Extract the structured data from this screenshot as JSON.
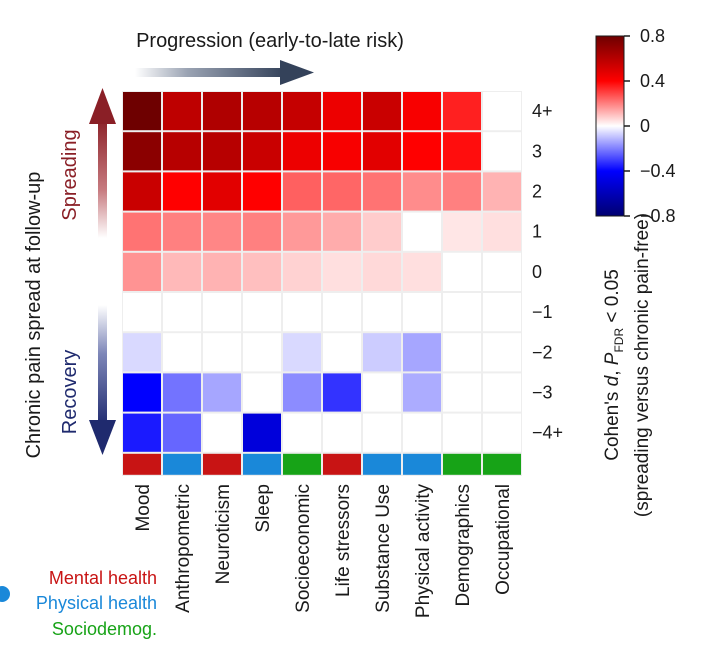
{
  "chart_data": {
    "type": "heatmap",
    "progression_label": "Progression (early-to-late risk)",
    "y_axis_title": "Chronic pain spread at follow-up",
    "spreading_label": "Spreading",
    "recovery_label": "Recovery",
    "columns": [
      "Mood",
      "Anthropometric",
      "Neuroticism",
      "Sleep",
      "Socioeconomic",
      "Life stressors",
      "Substance Use",
      "Physical activity",
      "Demographics",
      "Occupational"
    ],
    "rows": [
      "4+",
      "3",
      "2",
      "1",
      "0",
      "−1",
      "−2",
      "−3",
      "−4+"
    ],
    "values": [
      [
        0.8,
        0.58,
        0.62,
        0.6,
        0.56,
        0.45,
        0.55,
        0.42,
        0.35,
        0.0
      ],
      [
        0.72,
        0.6,
        0.6,
        0.55,
        0.45,
        0.42,
        0.48,
        0.4,
        0.38,
        0.0
      ],
      [
        0.55,
        0.4,
        0.48,
        0.4,
        0.25,
        0.24,
        0.22,
        0.18,
        0.2,
        0.12
      ],
      [
        0.22,
        0.2,
        0.19,
        0.2,
        0.16,
        0.13,
        0.08,
        0.0,
        0.04,
        0.05
      ],
      [
        0.17,
        0.11,
        0.12,
        0.1,
        0.07,
        0.05,
        0.06,
        0.05,
        0.0,
        0.0
      ],
      [
        0.0,
        0.0,
        0.0,
        0.0,
        0.0,
        0.0,
        0.0,
        0.0,
        0.0,
        0.0
      ],
      [
        -0.06,
        0.0,
        0.0,
        0.0,
        -0.06,
        0.0,
        -0.08,
        -0.14,
        0.0,
        0.0
      ],
      [
        -0.4,
        -0.22,
        -0.14,
        0.0,
        -0.18,
        -0.32,
        0.0,
        -0.13,
        0.0,
        0.0
      ],
      [
        -0.36,
        -0.24,
        0.0,
        -0.5,
        0.0,
        0.0,
        0.0,
        0.0,
        0.0,
        0.0
      ]
    ],
    "column_category": [
      "mental",
      "physical",
      "mental",
      "physical",
      "socio",
      "mental",
      "physical",
      "physical",
      "socio",
      "socio"
    ],
    "category_colors": {
      "mental": "#c81414",
      "physical": "#1a88d9",
      "socio": "#17a317"
    },
    "legend": {
      "mental": "Mental health",
      "physical": "Physical health",
      "socio": "Sociodemog."
    },
    "colorbar": {
      "ticks": [
        "0.8",
        "0.4",
        "0",
        "−0.4",
        "−0.8"
      ],
      "tick_values": [
        0.8,
        0.4,
        0,
        -0.4,
        -0.8
      ],
      "range": [
        -0.8,
        0.8
      ],
      "label_line1_a": "Cohen's ",
      "label_line1_d": "d",
      "label_line1_b": ", ",
      "label_line1_p": "P",
      "label_line1_sub": "FDR",
      "label_line1_c": " < 0.05",
      "label_line2": "(spreading versus chronic pain-free)"
    },
    "colors": {
      "max_red": "#6e0000",
      "red": "#ff0000",
      "white": "#ffffff",
      "blue": "#0000ff",
      "max_blue": "#000070",
      "spreading_arrow": "#8a1f26",
      "recovery_arrow": "#1f2a6e",
      "progression_arrow": "#34425a"
    }
  }
}
